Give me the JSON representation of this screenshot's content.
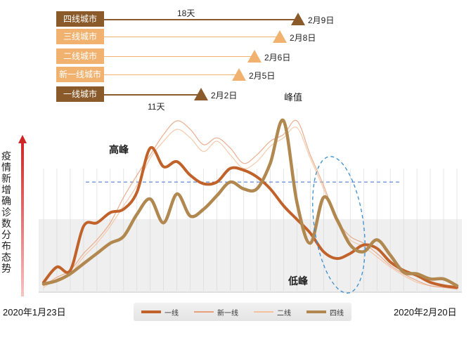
{
  "tiers": [
    {
      "label": "四线城市",
      "date": "2月9日",
      "box_color": "#8a5a2b",
      "line_color": "#8a5a2b",
      "tri_color": "#8a5a2b"
    },
    {
      "label": "三线城市",
      "date": "2月8日",
      "box_color": "#f0b26e",
      "line_color": "#f0b26e",
      "tri_color": "#f0b26e"
    },
    {
      "label": "二线城市",
      "date": "2月6日",
      "box_color": "#f0b26e",
      "line_color": "#f0b26e",
      "tri_color": "#f0b26e"
    },
    {
      "label": "新一线城市",
      "date": "2月5日",
      "box_color": "#f0b26e",
      "line_color": "#f0b26e",
      "tri_color": "#f0b26e"
    },
    {
      "label": "一线城市",
      "date": "2月2日",
      "box_color": "#8a5a2b",
      "line_color": "#8a5a2b",
      "tri_color": "#8a5a2b"
    }
  ],
  "span_top_label": "18天",
  "span_bottom_label": "11天",
  "peak_label": "峰值",
  "chart_data": {
    "type": "line",
    "title": "",
    "ylabel": "疫情新增确诊数分布态势",
    "x_start_label": "2020年1月23日",
    "x_end_label": "2020年2月20日",
    "annotations": {
      "high": "高峰",
      "low": "低峰"
    },
    "series": [
      {
        "name": "一线",
        "color": "#c0622a",
        "values": [
          5,
          14,
          12,
          38,
          40,
          46,
          48,
          58,
          84,
          73,
          76,
          68,
          63,
          64,
          72,
          71,
          67,
          60,
          50,
          42,
          34,
          23,
          19,
          22,
          27,
          25,
          17,
          12,
          9,
          5,
          3,
          2
        ]
      },
      {
        "name": "新一线",
        "color": "#e8a07c",
        "values": [
          3,
          8,
          12,
          22,
          30,
          40,
          55,
          68,
          80,
          92,
          100,
          95,
          86,
          90,
          84,
          75,
          80,
          88,
          92,
          100,
          80,
          62,
          42,
          32,
          28,
          22,
          15,
          10,
          6,
          3,
          2,
          1
        ]
      },
      {
        "name": "二线",
        "color": "#f3c19d",
        "values": [
          2,
          7,
          10,
          20,
          28,
          38,
          50,
          62,
          78,
          88,
          95,
          90,
          82,
          88,
          80,
          72,
          76,
          85,
          90,
          96,
          78,
          60,
          40,
          30,
          26,
          20,
          14,
          9,
          5,
          3,
          2,
          1
        ]
      },
      {
        "name": "四线",
        "color": "#b08850",
        "values": [
          4,
          6,
          10,
          16,
          22,
          28,
          32,
          45,
          54,
          40,
          57,
          44,
          48,
          56,
          64,
          60,
          60,
          75,
          100,
          52,
          28,
          55,
          42,
          27,
          23,
          30,
          21,
          11,
          10,
          7,
          7,
          3
        ]
      }
    ],
    "reference_line": 64,
    "ylim": [
      0,
      100
    ]
  },
  "legend": [
    {
      "name": "一线",
      "color": "#c0622a",
      "width": 4
    },
    {
      "name": "新一线",
      "color": "#e8a07c",
      "width": 2
    },
    {
      "name": "二线",
      "color": "#f3c19d",
      "width": 2
    },
    {
      "name": "四线",
      "color": "#b08850",
      "width": 4
    }
  ]
}
